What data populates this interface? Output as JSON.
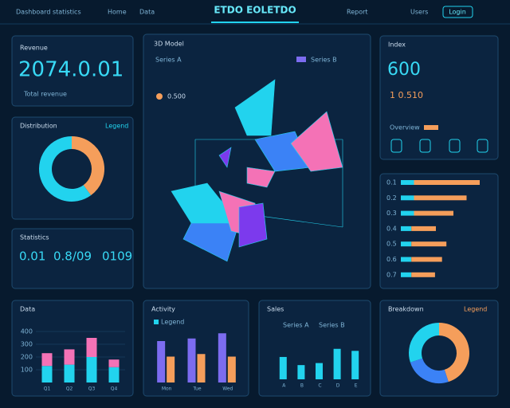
{
  "header": {
    "brand": "Dashboard statistics",
    "title": "ETDO EOLETDO",
    "nav": [
      "Home",
      "Data",
      "Report",
      "Users"
    ],
    "button": "Login"
  },
  "kpi": {
    "title": "Revenue",
    "value": "2074.0.01",
    "caption": "Total revenue"
  },
  "donut1": {
    "title": "Distribution",
    "legend": "Legend",
    "values": [
      40,
      60
    ],
    "colors": [
      "#f59e5b",
      "#22d3ee"
    ]
  },
  "stats": {
    "title": "Statistics",
    "items": [
      "0.01",
      "0.8/09",
      "0109"
    ]
  },
  "main3d": {
    "title": "3D Model",
    "legend": [
      "Series A",
      "Series B"
    ],
    "label": "0.500"
  },
  "right_kpi": {
    "title": "Index",
    "value": "600",
    "line": "1 0.510",
    "caption": "Overview"
  },
  "hbars": {
    "categories": [
      "0.1",
      "0.2",
      "0.3",
      "0.4",
      "0.5",
      "0.6",
      "0.7"
    ],
    "xlim": [
      0,
      100
    ],
    "series": [
      {
        "color": "#22d3ee",
        "values": [
          15,
          15,
          15,
          12,
          12,
          12,
          12
        ]
      },
      {
        "color": "#f59e5b",
        "values": [
          75,
          60,
          45,
          28,
          40,
          35,
          27
        ]
      }
    ]
  },
  "bars1": {
    "title": "Data",
    "categories": [
      "Q1",
      "Q2",
      "Q3",
      "Q4"
    ],
    "ylim": [
      0,
      500
    ],
    "yticks": [
      100,
      200,
      300,
      400
    ],
    "series": [
      {
        "color": "#22d3ee",
        "values": [
          130,
          140,
          200,
          120
        ]
      },
      {
        "color": "#f472b6",
        "values": [
          100,
          120,
          150,
          60
        ]
      }
    ]
  },
  "bars2": {
    "title": "Activity",
    "legend": "Legend",
    "categories": [
      "Mon",
      "Tue",
      "Wed"
    ],
    "ylim": [
      0,
      100
    ],
    "series": [
      {
        "color": "#7c6cf0",
        "values": [
          80,
          85,
          95
        ]
      },
      {
        "color": "#f59e5b",
        "values": [
          50,
          55,
          50
        ]
      }
    ]
  },
  "bars3": {
    "title": "Sales",
    "legend": [
      "Series A",
      "Series B"
    ],
    "categories": [
      "A",
      "B",
      "C",
      "D",
      "E"
    ],
    "ylim": [
      0,
      100
    ],
    "series": [
      {
        "color": "#22d3ee",
        "values": [
          55,
          35,
          40,
          75,
          70
        ]
      }
    ]
  },
  "donut2": {
    "title": "Breakdown",
    "legend": "Legend",
    "values": [
      45,
      25,
      30
    ],
    "colors": [
      "#f59e5b",
      "#3b82f6",
      "#22d3ee"
    ]
  }
}
